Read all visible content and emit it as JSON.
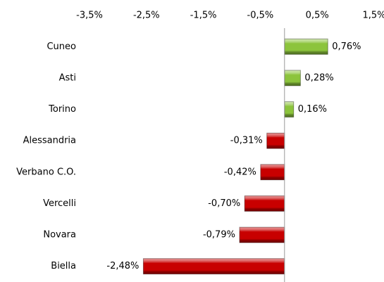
{
  "chart_data": {
    "type": "bar",
    "orientation": "horizontal",
    "categories": [
      "Cuneo",
      "Asti",
      "Torino",
      "Alessandria",
      "Verbano C.O.",
      "Vercelli",
      "Novara",
      "Biella"
    ],
    "values": [
      0.76,
      0.28,
      0.16,
      -0.31,
      -0.42,
      -0.7,
      -0.79,
      -2.48
    ],
    "value_labels": [
      "0,76%",
      "0,28%",
      "0,16%",
      "-0,31%",
      "-0,42%",
      "-0,70%",
      "-0,79%",
      "-2,48%"
    ],
    "positive_color": "#8cc43c",
    "negative_color": "#c80000",
    "xlim": [
      -3.5,
      1.5
    ],
    "xticks": [
      {
        "value": -3.5,
        "label": "-3,5%"
      },
      {
        "value": -2.5,
        "label": "-2,5%"
      },
      {
        "value": -1.5,
        "label": "-1,5%"
      },
      {
        "value": -0.5,
        "label": "-0,5%"
      },
      {
        "value": 0.5,
        "label": "0,5%"
      },
      {
        "value": 1.5,
        "label": "1,5%"
      }
    ],
    "grid": false
  }
}
